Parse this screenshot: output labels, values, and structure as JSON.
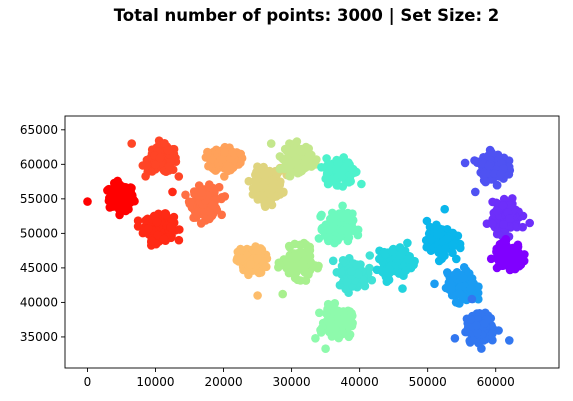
{
  "chart_data": {
    "type": "scatter",
    "title": "Total number of points: 3000 | Set Size: 2",
    "xlabel": "",
    "ylabel": "",
    "xlim": [
      -3300,
      69300
    ],
    "ylim": [
      30500,
      67000
    ],
    "x_ticks": [
      0,
      10000,
      20000,
      30000,
      40000,
      50000,
      60000
    ],
    "y_ticks": [
      35000,
      40000,
      45000,
      50000,
      55000,
      60000,
      65000
    ],
    "grid": false,
    "legend": "none",
    "total_points": 3000,
    "clusters": [
      {
        "center": [
          5000,
          55200
        ],
        "spread": [
          1500,
          1600
        ],
        "color": "#ff0000"
      },
      {
        "center": [
          10500,
          50800
        ],
        "spread": [
          1800,
          1500
        ],
        "color": "#ff2a15"
      },
      {
        "center": [
          11000,
          60700
        ],
        "spread": [
          1800,
          1600
        ],
        "color": "#ff4526"
      },
      {
        "center": [
          17300,
          54500
        ],
        "spread": [
          1700,
          1800
        ],
        "color": "#ff7043"
      },
      {
        "center": [
          20300,
          60800
        ],
        "spread": [
          1700,
          1500
        ],
        "color": "#ffa15a"
      },
      {
        "center": [
          24100,
          46000
        ],
        "spread": [
          1600,
          1500
        ],
        "color": "#fdbd6b"
      },
      {
        "center": [
          26600,
          57100
        ],
        "spread": [
          1700,
          1900
        ],
        "color": "#dfd47e"
      },
      {
        "center": [
          31000,
          61000
        ],
        "spread": [
          1600,
          1600
        ],
        "color": "#c4e78c"
      },
      {
        "center": [
          30900,
          45700
        ],
        "spread": [
          1800,
          1700
        ],
        "color": "#a8f08e"
      },
      {
        "center": [
          36800,
          37200
        ],
        "spread": [
          1600,
          1700
        ],
        "color": "#8efaac"
      },
      {
        "center": [
          36900,
          50800
        ],
        "spread": [
          1700,
          1700
        ],
        "color": "#6cf9be"
      },
      {
        "center": [
          37200,
          59100
        ],
        "spread": [
          1800,
          1500
        ],
        "color": "#4cf2cc"
      },
      {
        "center": [
          39000,
          44000
        ],
        "spread": [
          1700,
          1600
        ],
        "color": "#3fe2d6"
      },
      {
        "center": [
          45400,
          46000
        ],
        "spread": [
          1700,
          1600
        ],
        "color": "#22d3de"
      },
      {
        "center": [
          51900,
          48900
        ],
        "spread": [
          1700,
          1700
        ],
        "color": "#0ab6eb"
      },
      {
        "center": [
          55000,
          42200
        ],
        "spread": [
          1700,
          1700
        ],
        "color": "#1a9cf2"
      },
      {
        "center": [
          57800,
          36200
        ],
        "spread": [
          1700,
          1700
        ],
        "color": "#3277f0"
      },
      {
        "center": [
          59600,
          59700
        ],
        "spread": [
          1600,
          1600
        ],
        "color": "#4f52f2"
      },
      {
        "center": [
          61600,
          52300
        ],
        "spread": [
          1700,
          1700
        ],
        "color": "#6d2ffa"
      },
      {
        "center": [
          61900,
          46600
        ],
        "spread": [
          1700,
          1500
        ],
        "color": "#8000ff"
      }
    ],
    "outliers": [
      {
        "x": 0,
        "y": 54600,
        "color": "#ff0000"
      },
      {
        "x": 25000,
        "y": 41000,
        "color": "#fdbd6b"
      },
      {
        "x": 28700,
        "y": 41200,
        "color": "#a8f08e"
      },
      {
        "x": 37500,
        "y": 54000,
        "color": "#6cf9be"
      },
      {
        "x": 46300,
        "y": 42000,
        "color": "#22d3de"
      },
      {
        "x": 44000,
        "y": 43000,
        "color": "#22d3de"
      },
      {
        "x": 51000,
        "y": 42700,
        "color": "#1a9cf2"
      },
      {
        "x": 52500,
        "y": 53500,
        "color": "#0ab6eb"
      },
      {
        "x": 54000,
        "y": 34800,
        "color": "#3277f0"
      },
      {
        "x": 56500,
        "y": 40500,
        "color": "#3277f0"
      },
      {
        "x": 62000,
        "y": 34500,
        "color": "#3277f0"
      },
      {
        "x": 65000,
        "y": 51500,
        "color": "#6d2ffa"
      },
      {
        "x": 57000,
        "y": 56000,
        "color": "#4f52f2"
      },
      {
        "x": 55500,
        "y": 60200,
        "color": "#4f52f2"
      },
      {
        "x": 35000,
        "y": 33300,
        "color": "#8efaac"
      },
      {
        "x": 33500,
        "y": 34800,
        "color": "#8efaac"
      },
      {
        "x": 27000,
        "y": 63000,
        "color": "#c4e78c"
      },
      {
        "x": 6500,
        "y": 63000,
        "color": "#ff4526"
      },
      {
        "x": 12500,
        "y": 56000,
        "color": "#ff2a15"
      },
      {
        "x": 41500,
        "y": 46800,
        "color": "#3fe2d6"
      }
    ]
  }
}
